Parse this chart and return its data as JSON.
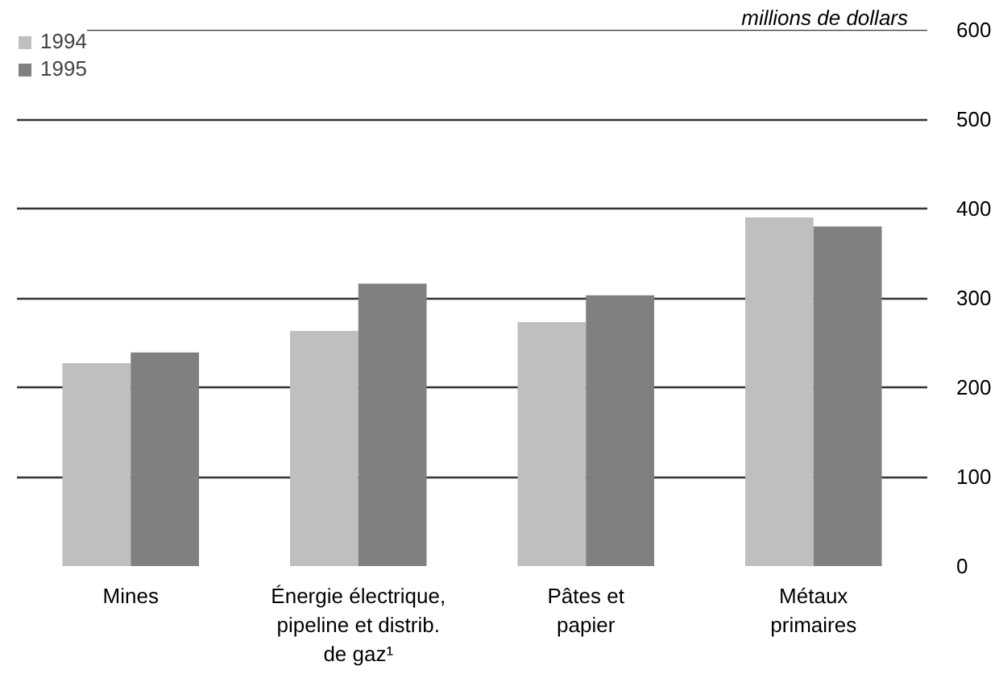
{
  "chart_data": {
    "type": "bar",
    "ylabel": "millions de dollars",
    "categories": [
      "Mines",
      "Énergie électrique,\npipeline et distrib.\nde gaz¹",
      "Pâtes et\npapier",
      "Métaux\nprimaires"
    ],
    "series": [
      {
        "name": "1994",
        "color": "#bfbfbf",
        "values": [
          227,
          263,
          273,
          390
        ]
      },
      {
        "name": "1995",
        "color": "#808080",
        "values": [
          239,
          316,
          303,
          380
        ]
      }
    ],
    "ylim": [
      0,
      600
    ],
    "yticks": [
      0,
      100,
      200,
      300,
      400,
      500,
      600
    ],
    "grid": "y",
    "legend": "top left"
  }
}
